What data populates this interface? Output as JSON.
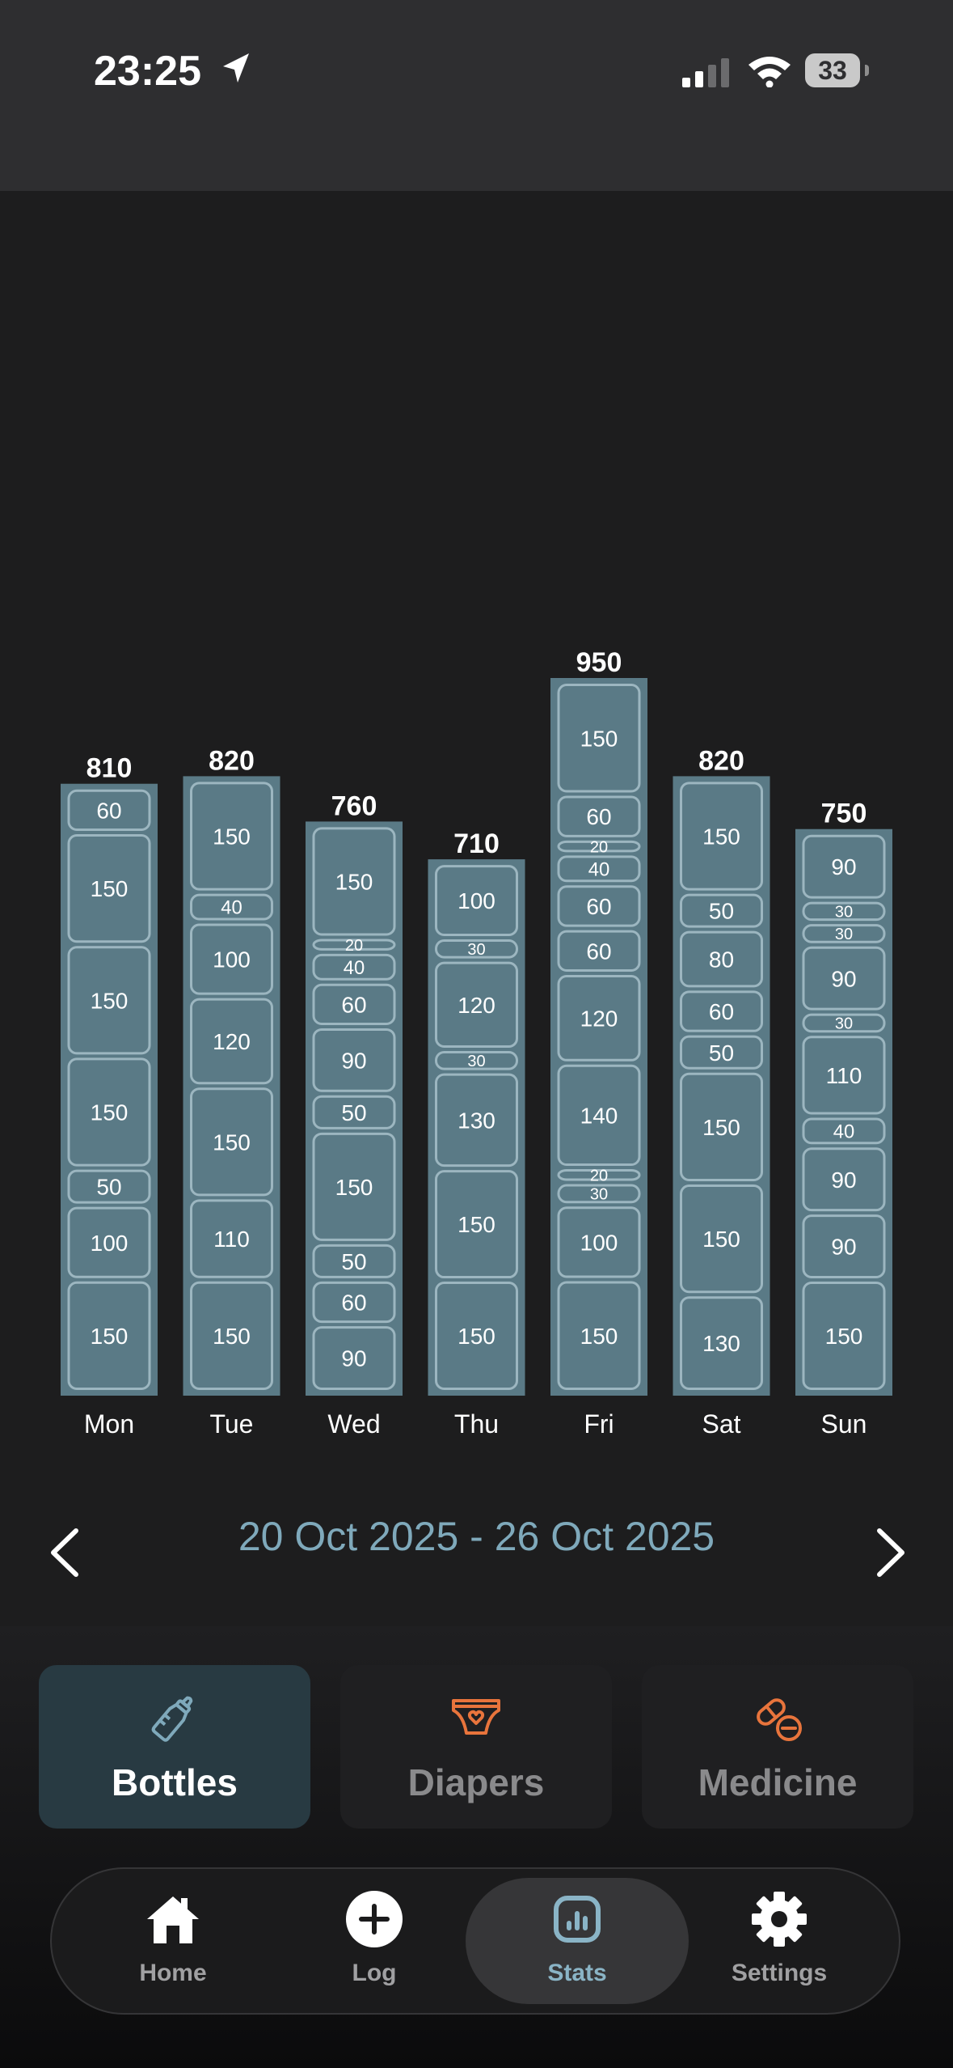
{
  "status_bar": {
    "time": "23:25",
    "battery": "33"
  },
  "chart_data": {
    "type": "bar",
    "stacked": true,
    "categories": [
      "Mon",
      "Tue",
      "Wed",
      "Thu",
      "Fri",
      "Sat",
      "Sun"
    ],
    "totals": [
      810,
      820,
      760,
      710,
      950,
      820,
      750
    ],
    "segments": [
      [
        60,
        150,
        150,
        150,
        50,
        100,
        150
      ],
      [
        150,
        40,
        100,
        120,
        150,
        110,
        150
      ],
      [
        150,
        20,
        40,
        60,
        90,
        50,
        150,
        50,
        60,
        90
      ],
      [
        100,
        30,
        120,
        30,
        130,
        150,
        150
      ],
      [
        150,
        60,
        20,
        40,
        60,
        60,
        120,
        140,
        20,
        30,
        100,
        150
      ],
      [
        150,
        50,
        80,
        60,
        50,
        150,
        150,
        130
      ],
      [
        90,
        30,
        30,
        90,
        30,
        110,
        40,
        90,
        90,
        150
      ]
    ],
    "colors": {
      "bar": "#5a7a86",
      "segment_border": "#9cb6c0",
      "text": "#ffffff"
    }
  },
  "week": {
    "range": "20 Oct 2025 - 26 Oct 2025",
    "prev_icon": "chevron-left-icon",
    "next_icon": "chevron-right-icon"
  },
  "categories": [
    {
      "label": "Bottles",
      "icon": "baby-bottle-icon",
      "active": true
    },
    {
      "label": "Diapers",
      "icon": "diaper-icon",
      "active": false
    },
    {
      "label": "Medicine",
      "icon": "pill-icon",
      "active": false
    }
  ],
  "tabs": [
    {
      "label": "Home",
      "icon": "home-icon"
    },
    {
      "label": "Log",
      "icon": "plus-circle-icon"
    },
    {
      "label": "Stats",
      "icon": "chart-icon",
      "active": true
    },
    {
      "label": "Settings",
      "icon": "gear-icon"
    }
  ],
  "colors": {
    "accent": "#7fa9bb",
    "orange": "#e8743c",
    "active_bg": "#283a42"
  }
}
